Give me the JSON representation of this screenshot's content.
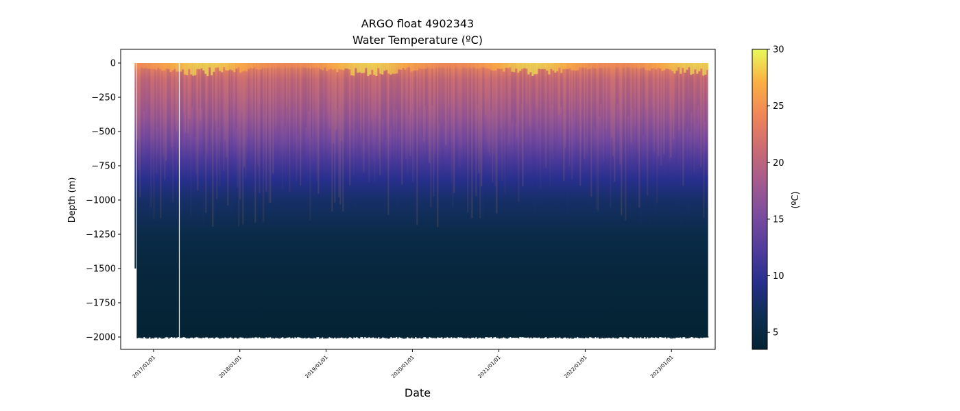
{
  "chart_data": {
    "type": "heatmap",
    "title": "ARGO float 4902343",
    "subtitle": "Water Temperature (ºC)",
    "xlabel": "Date",
    "ylabel": "Depth (m)",
    "x_range": [
      "2016-08-15",
      "2023-07-05"
    ],
    "x_data_start": "2016-10-13",
    "x_data_end": "2023-06-05",
    "x_gap": "2017-04-20",
    "x_tick_labels": [
      "2017/01/01",
      "2018/01/01",
      "2019/01/01",
      "2020/01/01",
      "2021/01/01",
      "2022/01/01",
      "2023/01/01"
    ],
    "x_ticks": [
      "2017-01-01",
      "2018-01-01",
      "2019-01-01",
      "2020-01-01",
      "2021-01-01",
      "2022-01-01",
      "2023-01-01"
    ],
    "ylim": [
      -2090,
      100
    ],
    "y_ticks": [
      0,
      -250,
      -500,
      -750,
      -1000,
      -1250,
      -1500,
      -1750,
      -2000
    ],
    "y_tick_labels": [
      "0",
      "−250",
      "−500",
      "−750",
      "−1000",
      "−1250",
      "−1500",
      "−1750",
      "−2000"
    ],
    "first_profiles_max_depth": -1500,
    "max_depth": -2000,
    "temperature_profile": [
      {
        "depth": 0,
        "temp": 26
      },
      {
        "depth": -50,
        "temp": 23
      },
      {
        "depth": -120,
        "temp": 21
      },
      {
        "depth": -250,
        "temp": 19.5
      },
      {
        "depth": -400,
        "temp": 17.5
      },
      {
        "depth": -550,
        "temp": 15
      },
      {
        "depth": -700,
        "temp": 12
      },
      {
        "depth": -850,
        "temp": 9.5
      },
      {
        "depth": -1000,
        "temp": 7.5
      },
      {
        "depth": -1250,
        "temp": 5.5
      },
      {
        "depth": -1500,
        "temp": 4.5
      },
      {
        "depth": -1750,
        "temp": 4
      },
      {
        "depth": -2000,
        "temp": 3.6
      }
    ],
    "colorbar": {
      "label": "(ºC)",
      "range": [
        3.5,
        30
      ],
      "ticks": [
        5,
        10,
        15,
        20,
        25,
        30
      ],
      "tick_labels": [
        "5",
        "10",
        "15",
        "20",
        "25",
        "30"
      ],
      "colormap": "thermal",
      "colors": [
        "#042333",
        "#0d2f52",
        "#252e8c",
        "#523c9c",
        "#7a4c9e",
        "#a35a8f",
        "#cb6b73",
        "#ef8559",
        "#fbae43",
        "#e8fa5b"
      ]
    },
    "grid": false
  }
}
